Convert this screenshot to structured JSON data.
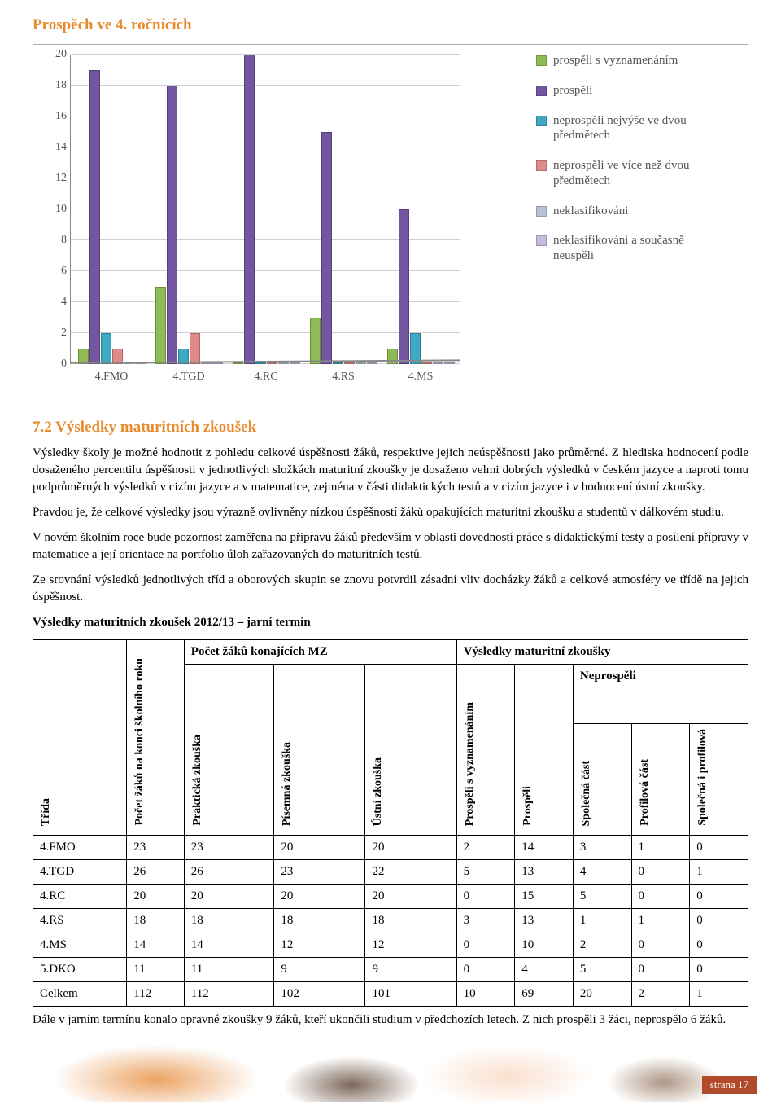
{
  "heading_chart": "Prospěch ve 4. ročnících",
  "heading_section": "7.2 Výsledky maturitních zkoušek",
  "chart": {
    "type": "bar",
    "ymax": 20,
    "ytick_step": 2,
    "grid_color": "#d0d0d0",
    "axis_color": "#888888",
    "categories": [
      "4.FMO",
      "4.TGD",
      "4.RC",
      "4.RS",
      "4.MS"
    ],
    "series": [
      {
        "label": "prospěli s vyznamenáním",
        "color": "#8fbb54",
        "values": [
          1,
          5,
          0,
          3,
          1
        ]
      },
      {
        "label": "prospěli",
        "color": "#73569f",
        "values": [
          19,
          18,
          20,
          15,
          10
        ]
      },
      {
        "label": "neprospěli nejvýše ve dvou předmětech",
        "color": "#3fa9c4",
        "values": [
          2,
          1,
          0,
          0,
          2
        ]
      },
      {
        "label": "neprospěli ve více než dvou předmětech",
        "color": "#e08b8b",
        "values": [
          1,
          2,
          0,
          0,
          0
        ]
      },
      {
        "label": "neklasifikováni",
        "color": "#b7c4d8",
        "values": [
          0,
          0,
          0,
          0,
          0
        ]
      },
      {
        "label": "neklasifikováni a současně neuspěli",
        "color": "#c8b9de",
        "values": [
          0,
          0,
          0,
          0,
          0
        ]
      }
    ]
  },
  "paragraphs": [
    "Výsledky školy je možné hodnotit z pohledu celkové úspěšnosti žáků, respektive jejich neúspěšnosti jako průměrné. Z hlediska hodnocení podle dosaženého percentilu úspěšnosti v jednotlivých složkách maturitní zkoušky je dosaženo velmi dobrých výsledků v českém jazyce a naproti tomu podprůměrných výsledků v cizím jazyce a v matematice, zejména v části didaktických testů a v cizím jazyce i v hodnocení ústní zkoušky.",
    "Pravdou je, že celkové výsledky jsou výrazně ovlivněny nízkou úspěšností žáků opakujících maturitní zkoušku a studentů v dálkovém studiu.",
    "V novém školním roce bude pozornost zaměřena na přípravu žáků především v oblasti dovedností práce s didaktickými testy a posílení přípravy v matematice a její orientace na portfolio úloh zařazovaných do maturitních testů.",
    "Ze srovnání výsledků jednotlivých tříd a oborových skupin se znovu potvrdil zásadní vliv docházky žáků a celkové atmosféry ve třídě na jejich úspěšnost."
  ],
  "table_caption": "Výsledky maturitních zkoušek 2012/13 – jarní termín",
  "table": {
    "header_group1": "Počet žáků konajících MZ",
    "header_group2": "Výsledky maturitní zkoušky",
    "header_neprospeli": "Neprospěli",
    "col_trida": "Třída",
    "col_pocet": "Počet žáků na konci školního roku",
    "col_prakticka": "Praktická zkouška",
    "col_pisemna": "Písemná zkouška",
    "col_ustni": "Ústní zkouška",
    "col_vyzn": "Prospěli s vyznamenáním",
    "col_prospeli": "Prospěli",
    "col_spolecna": "Společná část",
    "col_profilova": "Profilová část",
    "col_obe": "Společná i profilová",
    "rows": [
      {
        "t": "4.FMO",
        "c": [
          "23",
          "23",
          "20",
          "20",
          "2",
          "14",
          "3",
          "1",
          "0"
        ]
      },
      {
        "t": "4.TGD",
        "c": [
          "26",
          "26",
          "23",
          "22",
          "5",
          "13",
          "4",
          "0",
          "1"
        ]
      },
      {
        "t": "4.RC",
        "c": [
          "20",
          "20",
          "20",
          "20",
          "0",
          "15",
          "5",
          "0",
          "0"
        ]
      },
      {
        "t": "4.RS",
        "c": [
          "18",
          "18",
          "18",
          "18",
          "3",
          "13",
          "1",
          "1",
          "0"
        ]
      },
      {
        "t": "4.MS",
        "c": [
          "14",
          "14",
          "12",
          "12",
          "0",
          "10",
          "2",
          "0",
          "0"
        ]
      },
      {
        "t": "5.DKO",
        "c": [
          "11",
          "11",
          "9",
          "9",
          "0",
          "4",
          "5",
          "0",
          "0"
        ]
      },
      {
        "t": "Celkem",
        "c": [
          "112",
          "112",
          "102",
          "101",
          "10",
          "69",
          "20",
          "2",
          "1"
        ]
      }
    ]
  },
  "para_after_table": "Dále v jarním termínu konalo opravné zkoušky 9 žáků, kteří ukončili studium v předchozích letech. Z nich prospěli 3 žáci, neprospělo 6 žáků.",
  "footer": "strana 17"
}
